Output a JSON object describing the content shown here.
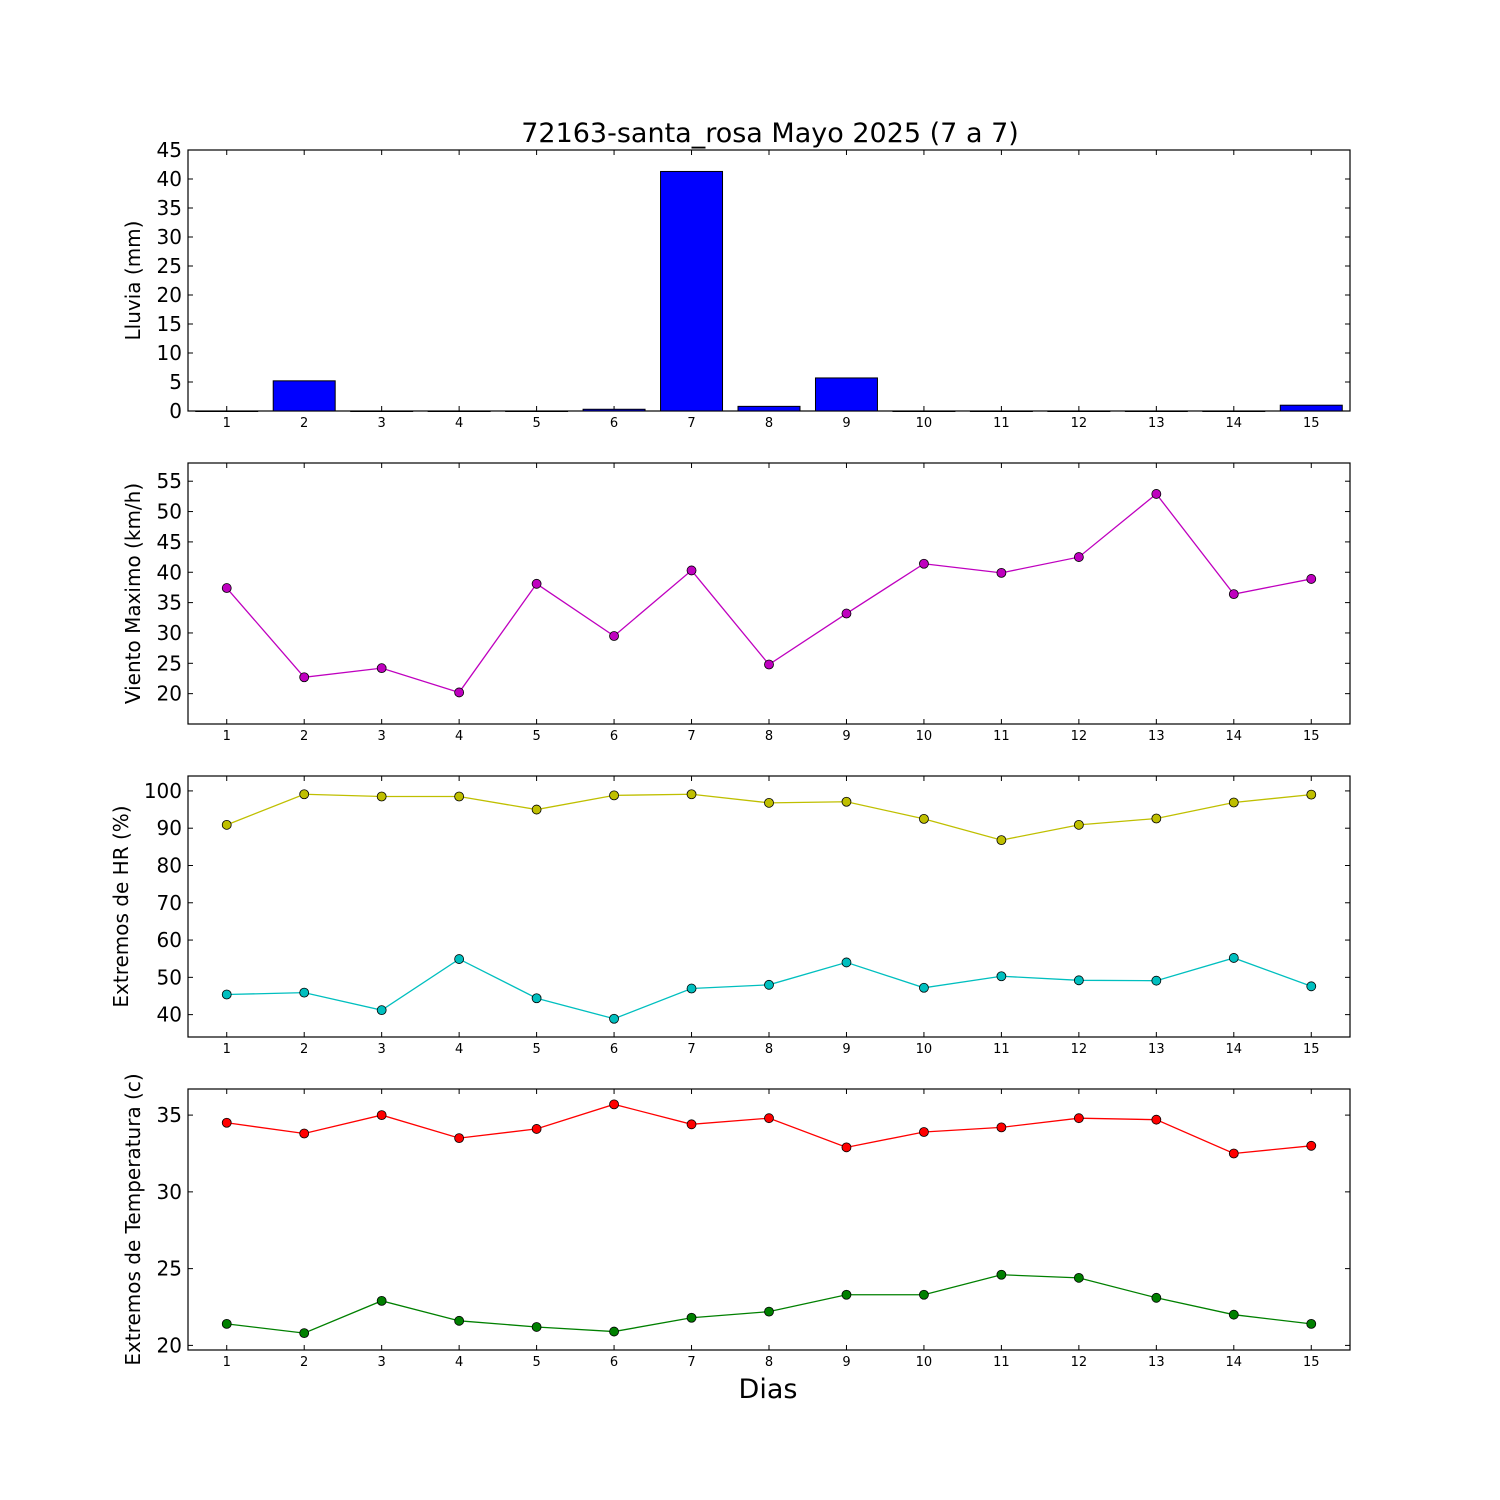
{
  "figure": {
    "title": "72163-santa_rosa Mayo 2025  (7 a 7)",
    "xlabel": "Dias"
  },
  "chart_data": [
    {
      "type": "bar",
      "ylabel": "Lluvia (mm)",
      "categories": [
        1,
        2,
        3,
        4,
        5,
        6,
        7,
        8,
        9,
        10,
        11,
        12,
        13,
        14,
        15
      ],
      "values": [
        0.0,
        5.2,
        0.0,
        0.0,
        0.0,
        0.3,
        41.3,
        0.8,
        5.7,
        0.0,
        0.0,
        0.0,
        0.0,
        0.0,
        1.0
      ],
      "ylim": [
        0,
        45
      ],
      "yticks": [
        0,
        5,
        10,
        15,
        20,
        25,
        30,
        35,
        40,
        45
      ],
      "xlim": [
        0.5,
        15.5
      ],
      "color": "#0000ff"
    },
    {
      "type": "line",
      "ylabel": "Viento Maximo (km/h)",
      "x": [
        1,
        2,
        3,
        4,
        5,
        6,
        7,
        8,
        9,
        10,
        11,
        12,
        13,
        14,
        15
      ],
      "series": [
        {
          "color": "#bf00bf",
          "values": [
            37.4,
            22.7,
            24.2,
            20.2,
            38.1,
            29.5,
            40.3,
            24.8,
            33.2,
            41.4,
            39.9,
            42.5,
            52.9,
            36.4,
            38.9
          ]
        }
      ],
      "ylim": [
        15,
        58
      ],
      "yticks": [
        20,
        25,
        30,
        35,
        40,
        45,
        50,
        55
      ],
      "xlim": [
        0.5,
        15.5
      ]
    },
    {
      "type": "line",
      "ylabel": "Extremos de HR (%)",
      "x": [
        1,
        2,
        3,
        4,
        5,
        6,
        7,
        8,
        9,
        10,
        11,
        12,
        13,
        14,
        15
      ],
      "series": [
        {
          "color": "#bfbf00",
          "values": [
            90.9,
            99.1,
            98.5,
            98.5,
            95.0,
            98.8,
            99.1,
            96.8,
            97.1,
            92.5,
            86.8,
            90.9,
            92.6,
            96.9,
            99.0
          ]
        },
        {
          "color": "#00bfbf",
          "values": [
            45.4,
            45.9,
            41.2,
            54.9,
            44.4,
            38.9,
            47.0,
            48.0,
            54.0,
            47.2,
            50.3,
            49.2,
            49.1,
            55.2,
            47.6
          ]
        }
      ],
      "ylim": [
        34,
        104
      ],
      "yticks": [
        40,
        50,
        60,
        70,
        80,
        90,
        100
      ],
      "xlim": [
        0.5,
        15.5
      ]
    },
    {
      "type": "line",
      "ylabel": "Extremos de Temperatura (c)",
      "x": [
        1,
        2,
        3,
        4,
        5,
        6,
        7,
        8,
        9,
        10,
        11,
        12,
        13,
        14,
        15
      ],
      "series": [
        {
          "color": "#ff0000",
          "values": [
            34.5,
            33.8,
            35.0,
            33.5,
            34.1,
            35.7,
            34.4,
            34.8,
            32.9,
            33.9,
            34.2,
            34.8,
            34.7,
            32.5,
            33.0
          ]
        },
        {
          "color": "#008000",
          "values": [
            21.4,
            20.8,
            22.9,
            21.6,
            21.2,
            20.9,
            21.8,
            22.2,
            23.3,
            23.3,
            24.6,
            24.4,
            23.1,
            22.0,
            21.4
          ]
        }
      ],
      "ylim": [
        19.7,
        36.7
      ],
      "yticks": [
        20,
        25,
        30,
        35
      ],
      "xlim": [
        0.5,
        15.5
      ]
    }
  ]
}
